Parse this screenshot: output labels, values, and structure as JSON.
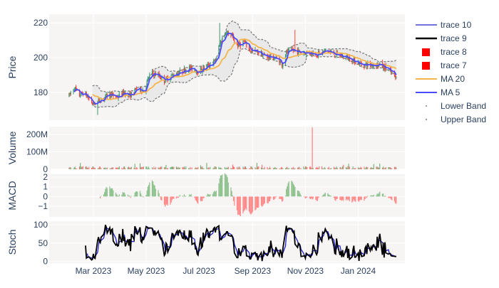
{
  "chart_data": {
    "type": "candlestick-with-indicators",
    "x_range": [
      "2023-01-09",
      "2024-02-24"
    ],
    "x_ticks": [
      {
        "date": "2023-03-01",
        "label": "Mar 2023"
      },
      {
        "date": "2023-05-01",
        "label": "May 2023"
      },
      {
        "date": "2023-07-01",
        "label": "Jul 2023"
      },
      {
        "date": "2023-09-01",
        "label": "Sep 2023"
      },
      {
        "date": "2023-11-01",
        "label": "Nov 2023"
      },
      {
        "date": "2024-01-01",
        "label": "Jan 2024"
      }
    ],
    "panels": [
      {
        "id": "price",
        "ylabel": "Price",
        "ylim": [
          164,
          225
        ],
        "ticks": [
          {
            "v": 180,
            "label": "180"
          },
          {
            "v": 200,
            "label": "200"
          },
          {
            "v": 220,
            "label": "220"
          }
        ]
      },
      {
        "id": "volume",
        "ylabel": "Volume",
        "ylim": [
          0,
          245000000
        ],
        "ticks": [
          {
            "v": 0,
            "label": "0"
          },
          {
            "v": 100000000,
            "label": "100M"
          },
          {
            "v": 200000000,
            "label": "200M"
          }
        ]
      },
      {
        "id": "macd",
        "ylabel": "MACD",
        "ylim": [
          -2.1,
          2.3
        ],
        "ticks": [
          {
            "v": -1,
            "label": "−1"
          },
          {
            "v": 0,
            "label": "0"
          },
          {
            "v": 1,
            "label": "1"
          },
          {
            "v": 2,
            "label": "2"
          }
        ]
      },
      {
        "id": "stoch",
        "ylabel": "Stoch",
        "ylim": [
          -5,
          110
        ],
        "ticks": [
          {
            "v": 0,
            "label": "0"
          },
          {
            "v": 50,
            "label": "50"
          },
          {
            "v": 100,
            "label": "100"
          }
        ]
      }
    ],
    "price_anchors": [
      [
        "2023-02-01",
        178
      ],
      [
        "2023-02-07",
        183
      ],
      [
        "2023-02-12",
        178
      ],
      [
        "2023-02-18",
        180
      ],
      [
        "2023-03-01",
        173
      ],
      [
        "2023-03-10",
        176
      ],
      [
        "2023-03-20",
        179
      ],
      [
        "2023-03-28",
        177
      ],
      [
        "2023-04-05",
        180
      ],
      [
        "2023-04-12",
        178
      ],
      [
        "2023-04-20",
        182
      ],
      [
        "2023-04-28",
        181
      ],
      [
        "2023-05-06",
        191
      ],
      [
        "2023-05-15",
        190
      ],
      [
        "2023-05-22",
        187
      ],
      [
        "2023-06-01",
        190
      ],
      [
        "2023-06-10",
        192
      ],
      [
        "2023-06-20",
        194
      ],
      [
        "2023-07-01",
        192
      ],
      [
        "2023-07-10",
        195
      ],
      [
        "2023-07-20",
        198
      ],
      [
        "2023-07-25",
        208
      ],
      [
        "2023-08-01",
        215
      ],
      [
        "2023-08-08",
        212
      ],
      [
        "2023-08-15",
        207
      ],
      [
        "2023-08-22",
        209
      ],
      [
        "2023-08-30",
        204
      ],
      [
        "2023-09-08",
        203
      ],
      [
        "2023-09-15",
        201
      ],
      [
        "2023-09-25",
        200
      ],
      [
        "2023-10-01",
        199
      ],
      [
        "2023-10-05",
        196
      ],
      [
        "2023-10-10",
        203
      ],
      [
        "2023-10-18",
        204
      ],
      [
        "2023-10-28",
        203
      ],
      [
        "2023-11-05",
        203
      ],
      [
        "2023-11-15",
        202
      ],
      [
        "2023-11-25",
        204
      ],
      [
        "2023-12-05",
        202
      ],
      [
        "2023-12-12",
        201
      ],
      [
        "2023-12-20",
        200
      ],
      [
        "2023-12-28",
        198
      ],
      [
        "2024-01-05",
        196
      ],
      [
        "2024-01-15",
        196
      ],
      [
        "2024-01-25",
        196
      ],
      [
        "2024-02-05",
        193
      ],
      [
        "2024-02-14",
        188
      ]
    ],
    "annotated_bars": [
      {
        "date": "2023-03-05",
        "low": 167
      },
      {
        "date": "2023-07-25",
        "high": 220
      },
      {
        "date": "2023-10-20",
        "high": 216
      }
    ],
    "volume_spike": {
      "date": "2023-11-09",
      "value": 240000000
    },
    "series": [
      {
        "name": "trace 10",
        "color": "#1f1fcc",
        "kind": "stoch-d"
      },
      {
        "name": "trace 9",
        "color": "#000000",
        "kind": "stoch-k"
      },
      {
        "name": "trace 8",
        "color": "#ff0000",
        "kind": "macd-negative"
      },
      {
        "name": "trace 7",
        "color": "#ff0000",
        "kind": "macd-positive"
      },
      {
        "name": "MA 20",
        "color": "#f5b54c",
        "kind": "ma20"
      },
      {
        "name": "MA 5",
        "color": "#4a4aff",
        "kind": "ma5"
      },
      {
        "name": "Lower Band",
        "color": "#808080",
        "kind": "bollinger-lower"
      },
      {
        "name": "Upper Band",
        "color": "#808080",
        "kind": "bollinger-upper"
      }
    ],
    "colors": {
      "increasing": "#3d9970",
      "decreasing": "#ff4136",
      "vol_up": "#66aa66",
      "vol_down": "#ff6666",
      "hist_up": "#8cc08c",
      "hist_down": "#ff8888",
      "band_fill": "#e6e6e6",
      "plot_bg": "#f7f4f4",
      "axis_text": "#2a3f5f"
    }
  }
}
